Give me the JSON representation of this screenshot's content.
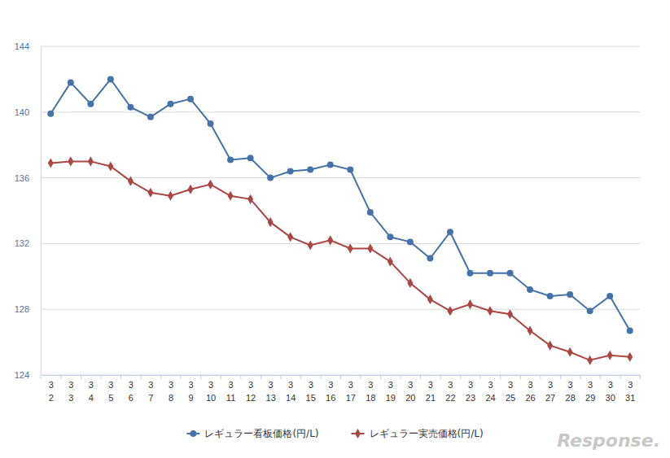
{
  "chart_data": {
    "type": "line",
    "categories": [
      "3\n2",
      "3\n3",
      "3\n4",
      "3\n5",
      "3\n6",
      "3\n7",
      "3\n8",
      "3\n9",
      "3\n10",
      "3\n11",
      "3\n12",
      "3\n13",
      "3\n14",
      "3\n15",
      "3\n16",
      "3\n17",
      "3\n18",
      "3\n19",
      "3\n20",
      "3\n21",
      "3\n22",
      "3\n23",
      "3\n24",
      "3\n25",
      "3\n26",
      "3\n27",
      "3\n28",
      "3\n29",
      "3\n30",
      "3\n31"
    ],
    "series": [
      {
        "name": "レギュラー看板価格(円/L)",
        "color": "#4572a7",
        "marker": "circle",
        "values": [
          139.9,
          141.8,
          140.5,
          142.0,
          140.3,
          139.7,
          140.5,
          140.8,
          139.3,
          137.1,
          137.2,
          136.0,
          136.4,
          136.5,
          136.8,
          136.5,
          133.9,
          132.4,
          132.1,
          131.1,
          132.7,
          130.2,
          130.2,
          130.2,
          129.2,
          128.8,
          128.9,
          127.9,
          128.8,
          126.7
        ]
      },
      {
        "name": "レギュラー実売価格(円/L)",
        "color": "#aa4643",
        "marker": "diamond",
        "values": [
          136.9,
          137.0,
          137.0,
          136.7,
          135.8,
          135.1,
          134.9,
          135.3,
          135.6,
          134.9,
          134.7,
          133.3,
          132.4,
          131.9,
          132.2,
          131.7,
          131.7,
          130.9,
          129.6,
          128.6,
          127.9,
          128.3,
          127.9,
          127.7,
          126.7,
          125.8,
          125.4,
          124.9,
          125.2,
          125.1
        ]
      }
    ],
    "ylim": [
      124,
      144
    ],
    "yticks": [
      124,
      128,
      132,
      136,
      140,
      144
    ],
    "grid": true,
    "legend": "bottom",
    "watermark": "Response."
  }
}
